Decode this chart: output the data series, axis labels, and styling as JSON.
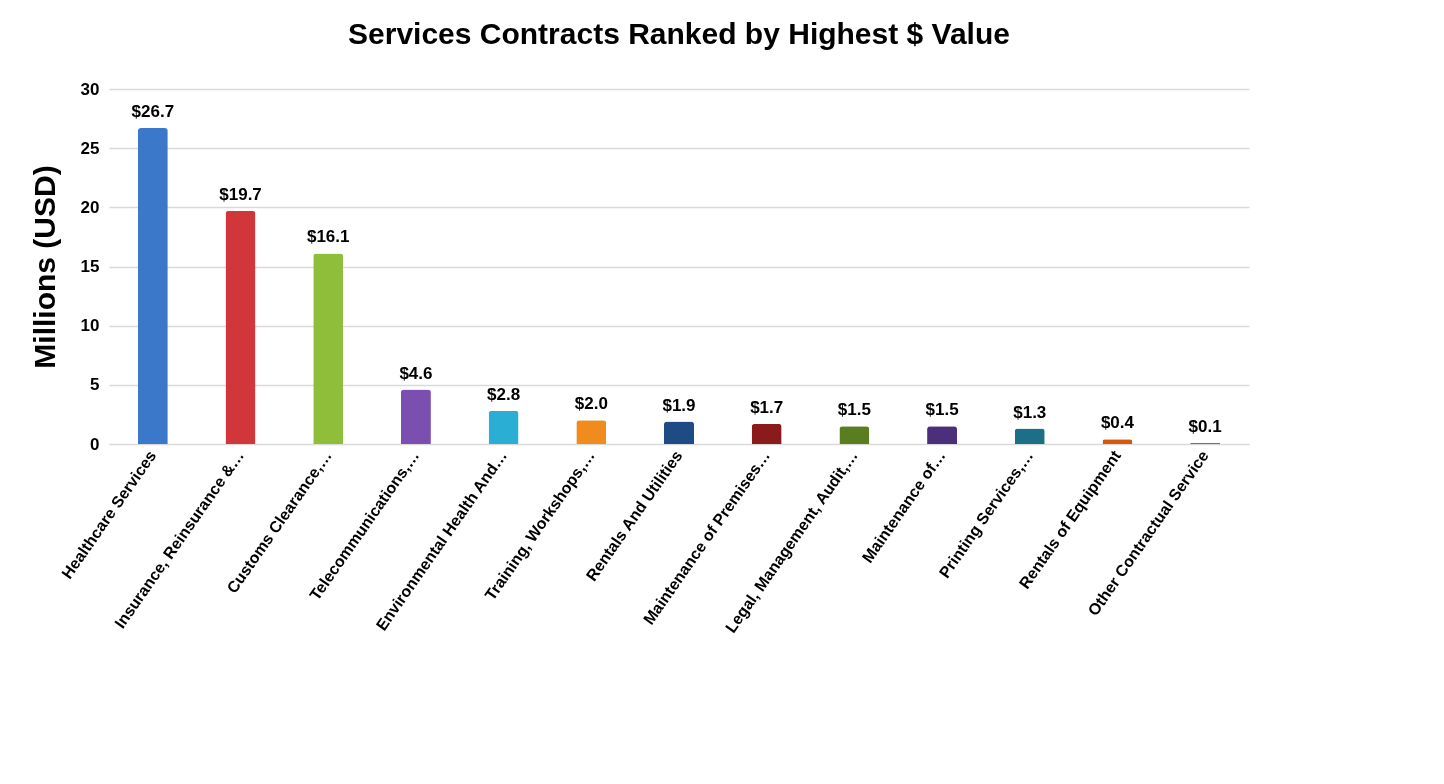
{
  "chart_data": {
    "type": "bar",
    "title": "Services Contracts Ranked by Highest $ Value",
    "ylabel": "Millions (USD)",
    "categories": [
      "Healthcare Services",
      "Insurance, Reinsurance &…",
      "Customs Clearance,…",
      "Telecommunications,…",
      "Environmental Health And…",
      "Training, Workshops,…",
      "Rentals And Utilities",
      "Maintenance of Premises…",
      "Legal, Management, Audit,…",
      "Maintenance of…",
      "Printing Services,…",
      "Rentals of Equipment",
      "Other Contractual Service"
    ],
    "values": [
      26.7,
      19.7,
      16.1,
      4.6,
      2.8,
      2.0,
      1.9,
      1.7,
      1.5,
      1.5,
      1.3,
      0.4,
      0.1
    ],
    "colors": [
      "#3b78c9",
      "#d0363a",
      "#8fbf3a",
      "#7a4fb0",
      "#2aaed4",
      "#f08c1e",
      "#1f4b85",
      "#8b1a1a",
      "#5a7d1f",
      "#4b2f7a",
      "#1d6f87",
      "#d45a0a",
      "#4a78b5"
    ],
    "value_labels": [
      "$26.7",
      "$19.7",
      "$16.1",
      "$4.6",
      "$2.8",
      "$2.0",
      "$1.9",
      "$1.7",
      "$1.5",
      "$1.5",
      "$1.3",
      "$0.4",
      "$0.1"
    ],
    "ylim": [
      0,
      30
    ],
    "yticks": [
      0,
      5,
      10,
      15,
      20,
      25,
      30
    ],
    "grid": "y",
    "legend": false
  }
}
